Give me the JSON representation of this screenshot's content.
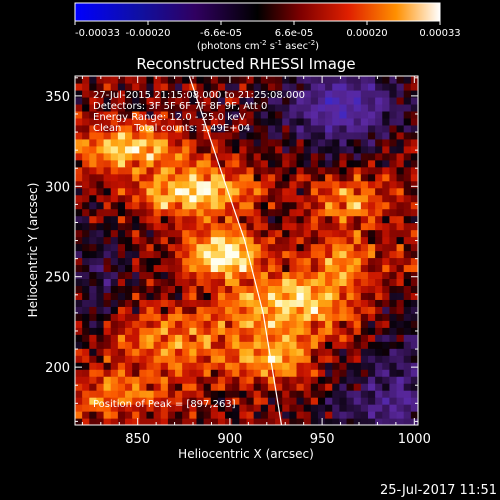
{
  "colorbar": {
    "ticks": [
      "-0.00033",
      "-0.00020",
      "-6.6e-05",
      "6.6e-05",
      "0.00020",
      "0.00033"
    ],
    "unit_main": "(photons cm",
    "unit_sup1": "-2",
    "unit_mid": " s",
    "unit_sup2": "-1",
    "unit_end": " asec",
    "unit_sup3": "-2",
    "unit_close": ")"
  },
  "chart_data": {
    "type": "heatmap",
    "title": "Reconstructed RHESSI Image",
    "xlabel": "Heliocentric X (arcsec)",
    "ylabel": "Heliocentric Y (arcsec)",
    "xlim": [
      816,
      1002
    ],
    "ylim": [
      168,
      361
    ],
    "xticks": [
      850,
      900,
      950,
      1000
    ],
    "yticks": [
      200,
      250,
      300,
      350
    ],
    "value_range": [
      -0.00033,
      0.00033
    ],
    "colormap": "rhessi-hot",
    "annotations": [
      "27-Jul-2015 21:15:08.000 to 21:25:08.000",
      "Detectors: 3F 5F 6F 7F 8F 9F, Att 0",
      "Energy Range: 12.0 - 25.0 keV",
      "Clean    Total counts: 1.49E+04"
    ],
    "peak_label": "Position of Peak = [897,263]",
    "peak": [
      897,
      263
    ],
    "limb": [
      [
        878,
        361
      ],
      [
        898,
        300
      ],
      [
        908,
        270
      ],
      [
        918,
        230
      ],
      [
        928,
        168
      ]
    ],
    "sources": [
      {
        "x": 897,
        "y": 263,
        "sx": 14,
        "sy": 9,
        "a": 1.0
      },
      {
        "x": 882,
        "y": 297,
        "sx": 22,
        "sy": 10,
        "a": 0.85
      },
      {
        "x": 845,
        "y": 322,
        "sx": 22,
        "sy": 9,
        "a": 0.75
      },
      {
        "x": 935,
        "y": 235,
        "sx": 25,
        "sy": 12,
        "a": 0.75
      },
      {
        "x": 925,
        "y": 205,
        "sx": 15,
        "sy": 10,
        "a": 0.6
      },
      {
        "x": 965,
        "y": 292,
        "sx": 14,
        "sy": 10,
        "a": 0.55
      },
      {
        "x": 870,
        "y": 215,
        "sx": 25,
        "sy": 14,
        "a": 0.5
      },
      {
        "x": 960,
        "y": 260,
        "sx": 14,
        "sy": 10,
        "a": 0.5
      },
      {
        "x": 840,
        "y": 185,
        "sx": 22,
        "sy": 10,
        "a": 0.45
      },
      {
        "x": 995,
        "y": 240,
        "sx": 8,
        "sy": 30,
        "a": 0.45
      }
    ],
    "negative_regions": [
      {
        "x": 960,
        "y": 345,
        "sx": 22,
        "sy": 15,
        "a": 0.8
      },
      {
        "x": 995,
        "y": 210,
        "sx": 10,
        "sy": 35,
        "a": 0.6
      },
      {
        "x": 830,
        "y": 250,
        "sx": 10,
        "sy": 20,
        "a": 0.35
      },
      {
        "x": 975,
        "y": 180,
        "sx": 18,
        "sy": 12,
        "a": 0.4
      }
    ]
  },
  "footer": {
    "timestamp": "25-Jul-2017 11:51"
  }
}
